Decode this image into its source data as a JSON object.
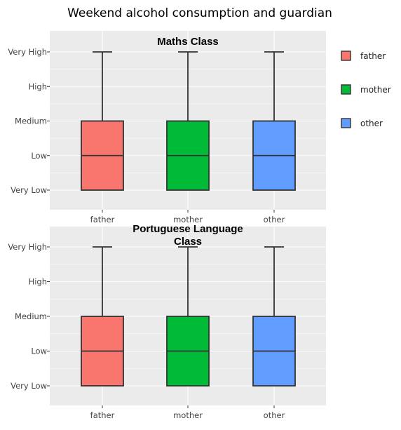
{
  "title": "Weekend alcohol consumption and guardian",
  "colors": {
    "panel_bg": "#EBEBEB",
    "grid": "#FFFFFF",
    "outline": "#333333",
    "father": "#F8766D",
    "mother": "#00BA38",
    "other": "#619CFF"
  },
  "legend": {
    "items": [
      {
        "label": "father",
        "color": "#F8766D"
      },
      {
        "label": "mother",
        "color": "#00BA38"
      },
      {
        "label": "other",
        "color": "#619CFF"
      }
    ]
  },
  "chart_data": [
    {
      "type": "boxplot",
      "title_lines": [
        "Maths Class"
      ],
      "categories": [
        "father",
        "mother",
        "other"
      ],
      "y_levels": [
        "Very Low",
        "Low",
        "Medium",
        "High",
        "Very High"
      ],
      "boxes": [
        {
          "name": "father",
          "min": "Very Low",
          "q1": "Very Low",
          "median": "Low",
          "q3": "Medium",
          "max": "Very High"
        },
        {
          "name": "mother",
          "min": "Very Low",
          "q1": "Very Low",
          "median": "Low",
          "q3": "Medium",
          "max": "Very High"
        },
        {
          "name": "other",
          "min": "Very Low",
          "q1": "Very Low",
          "median": "Low",
          "q3": "Medium",
          "max": "Very High"
        }
      ],
      "grid": true
    },
    {
      "type": "boxplot",
      "title_lines": [
        "Portuguese Language",
        "Class"
      ],
      "categories": [
        "father",
        "mother",
        "other"
      ],
      "y_levels": [
        "Very Low",
        "Low",
        "Medium",
        "High",
        "Very High"
      ],
      "boxes": [
        {
          "name": "father",
          "min": "Very Low",
          "q1": "Very Low",
          "median": "Low",
          "q3": "Medium",
          "max": "Very High"
        },
        {
          "name": "mother",
          "min": "Very Low",
          "q1": "Very Low",
          "median": "Low",
          "q3": "Medium",
          "max": "Very High"
        },
        {
          "name": "other",
          "min": "Very Low",
          "q1": "Very Low",
          "median": "Low",
          "q3": "Medium",
          "max": "Very High"
        }
      ],
      "grid": true
    }
  ]
}
